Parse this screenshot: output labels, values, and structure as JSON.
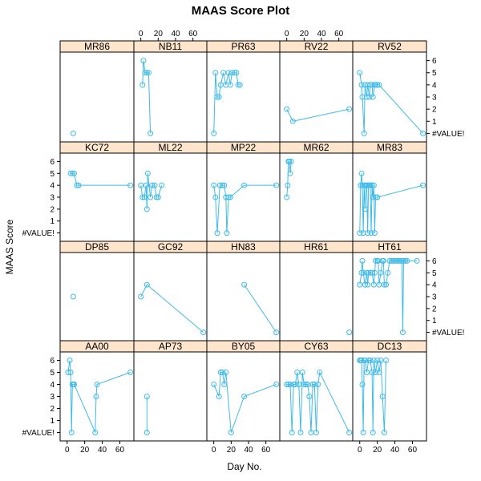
{
  "chart_data": {
    "type": "scatter",
    "title": "MAAS Score Plot",
    "xlabel": "Day No.",
    "ylabel": "MAAS Score",
    "xlim": [
      -8,
      76
    ],
    "ylim": [
      -0.7,
      6.7
    ],
    "x_ticks": [
      0,
      20,
      40,
      60
    ],
    "y_ticks": [
      0,
      1,
      2,
      3,
      4,
      5,
      6
    ],
    "y_tick_labels": [
      "#VALUE!",
      "1",
      "2",
      "3",
      "4",
      "5",
      "6"
    ],
    "layout": "4 rows x 5 columns",
    "series_color": "#3fbbe8",
    "strip_color": "#ffe5cc",
    "panels": [
      {
        "name": "MR86",
        "x": [
          7
        ],
        "y": [
          0
        ]
      },
      {
        "name": "NB11",
        "x": [
          2,
          3,
          5,
          7,
          9,
          11
        ],
        "y": [
          4,
          6,
          5,
          5,
          5,
          0
        ]
      },
      {
        "name": "PR63",
        "x": [
          0,
          2,
          4,
          6,
          8,
          11,
          14,
          17,
          19,
          21,
          24,
          26,
          28,
          30
        ],
        "y": [
          0,
          5,
          3,
          3,
          4,
          5,
          4,
          5,
          4,
          5,
          5,
          5,
          4,
          4
        ]
      },
      {
        "name": "RV22",
        "x": [
          0,
          7,
          72
        ],
        "y": [
          2,
          1,
          2
        ]
      },
      {
        "name": "RV52",
        "x": [
          0,
          2,
          3,
          5,
          6,
          8,
          9,
          11,
          12,
          14,
          15,
          17,
          18,
          20,
          22,
          72
        ],
        "y": [
          5,
          4,
          3,
          0,
          4,
          3,
          4,
          3,
          4,
          4,
          3,
          4,
          4,
          4,
          4,
          0
        ]
      },
      {
        "name": "KC72",
        "x": [
          4,
          6,
          8,
          11,
          13,
          72
        ],
        "y": [
          5,
          5,
          5,
          4,
          4,
          4
        ]
      },
      {
        "name": "ML22",
        "x": [
          0,
          2,
          4,
          6,
          7,
          8,
          11,
          13,
          16,
          18,
          20,
          24
        ],
        "y": [
          4,
          3,
          3,
          4,
          2,
          5,
          3,
          4,
          4,
          3,
          3,
          4
        ]
      },
      {
        "name": "MP22",
        "x": [
          0,
          2,
          4,
          7,
          10,
          12,
          14,
          15,
          17,
          19,
          35,
          72
        ],
        "y": [
          4,
          3,
          0,
          4,
          4,
          4,
          3,
          0,
          3,
          3,
          4,
          4
        ]
      },
      {
        "name": "MR62",
        "x": [
          0,
          1,
          2,
          3,
          4,
          5
        ],
        "y": [
          3,
          4,
          6,
          6,
          5,
          6
        ]
      },
      {
        "name": "MR83",
        "x": [
          0,
          1,
          2,
          3,
          4,
          5,
          6,
          7,
          8,
          9,
          10,
          11,
          12,
          13,
          14,
          15,
          16,
          17,
          18,
          20,
          72
        ],
        "y": [
          0,
          4,
          5,
          4,
          0,
          4,
          2,
          4,
          4,
          0,
          4,
          4,
          4,
          0,
          4,
          3,
          4,
          0,
          3,
          3,
          4
        ]
      },
      {
        "name": "DP85",
        "x": [
          7
        ],
        "y": [
          3
        ]
      },
      {
        "name": "GC92",
        "x": [
          0,
          7,
          72
        ],
        "y": [
          3,
          4,
          0
        ]
      },
      {
        "name": "HN83",
        "x": [
          35,
          72
        ],
        "y": [
          4,
          0
        ]
      },
      {
        "name": "HR61",
        "x": [
          72
        ],
        "y": [
          0
        ]
      },
      {
        "name": "HT61",
        "x": [
          0,
          2,
          3,
          4,
          6,
          8,
          9,
          10,
          12,
          14,
          16,
          17,
          18,
          20,
          21,
          22,
          24,
          26,
          27,
          28,
          30,
          32,
          34,
          36,
          38,
          40,
          42,
          44,
          46,
          48,
          49,
          50,
          52,
          54,
          65
        ],
        "y": [
          4,
          5,
          6,
          5,
          4,
          5,
          4,
          5,
          5,
          5,
          4,
          5,
          6,
          6,
          6,
          4,
          5,
          6,
          6,
          4,
          4,
          5,
          6,
          6,
          6,
          6,
          6,
          6,
          6,
          6,
          0,
          6,
          6,
          6,
          6
        ]
      },
      {
        "name": "AA00",
        "x": [
          1,
          3,
          4,
          5,
          6,
          7,
          8,
          32,
          33,
          34,
          72
        ],
        "y": [
          5,
          6,
          5,
          0,
          4,
          4,
          4,
          0,
          3,
          4,
          5
        ]
      },
      {
        "name": "AP73",
        "x": [
          7,
          7
        ],
        "y": [
          0,
          3
        ]
      },
      {
        "name": "BY05",
        "x": [
          0,
          6,
          8,
          10,
          12,
          14,
          20,
          35,
          72
        ],
        "y": [
          4,
          3,
          5,
          5,
          4,
          5,
          0,
          3,
          4
        ]
      },
      {
        "name": "CY63",
        "x": [
          0,
          2,
          4,
          6,
          8,
          10,
          12,
          14,
          16,
          18,
          20,
          22,
          24,
          26,
          28,
          30,
          32,
          34,
          36,
          38,
          72
        ],
        "y": [
          4,
          4,
          4,
          0,
          4,
          4,
          5,
          4,
          0,
          5,
          4,
          4,
          4,
          3,
          0,
          4,
          4,
          0,
          4,
          5,
          0
        ]
      },
      {
        "name": "DC13",
        "x": [
          0,
          1,
          2,
          3,
          4,
          5,
          6,
          8,
          10,
          12,
          14,
          15,
          16,
          18,
          20,
          22,
          24,
          26,
          28,
          30
        ],
        "y": [
          6,
          6,
          6,
          4,
          0,
          6,
          6,
          5,
          6,
          6,
          5,
          0,
          6,
          5,
          6,
          5,
          6,
          3,
          0,
          6
        ]
      }
    ]
  }
}
